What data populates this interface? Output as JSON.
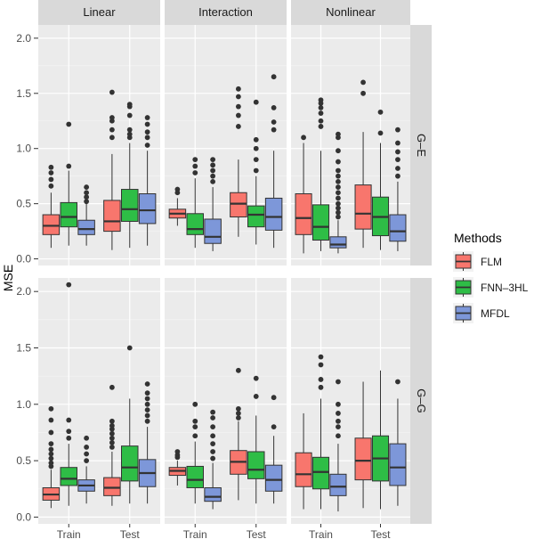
{
  "chart_data": {
    "type": "boxplot",
    "ylabel": "MSE",
    "xlabel": "",
    "ylim": [
      -0.06,
      2.12
    ],
    "yticks": [
      0.0,
      0.5,
      1.0,
      1.5,
      2.0
    ],
    "ytick_labels": [
      "0.0",
      "0.5",
      "1.0",
      "1.5",
      "2.0"
    ],
    "col_facets": [
      "Linear",
      "Interaction",
      "Nonlinear"
    ],
    "row_facets": [
      "G–E",
      "G–G"
    ],
    "categories": [
      "Train",
      "Test"
    ],
    "legend": {
      "title": "Methods",
      "position": "right",
      "entries": [
        {
          "name": "FLM",
          "color": "#f8766d"
        },
        {
          "name": "FNN–3HL",
          "color": "#2ebd46"
        },
        {
          "name": "MFDL",
          "color": "#7d97d9"
        }
      ]
    },
    "panels": [
      {
        "row": "G–E",
        "col": "Linear",
        "boxes": [
          {
            "x": "Train",
            "method": "FLM",
            "min": 0.1,
            "q1": 0.22,
            "median": 0.3,
            "q3": 0.4,
            "max": 0.6,
            "outliers": [
              0.66,
              0.72,
              0.78,
              0.83
            ]
          },
          {
            "x": "Train",
            "method": "FNN–3HL",
            "min": 0.12,
            "q1": 0.29,
            "median": 0.38,
            "q3": 0.51,
            "max": 0.8,
            "outliers": [
              0.84,
              1.22
            ]
          },
          {
            "x": "Train",
            "method": "MFDL",
            "min": 0.12,
            "q1": 0.22,
            "median": 0.27,
            "q3": 0.35,
            "max": 0.5,
            "outliers": [
              0.52,
              0.56,
              0.6,
              0.65
            ]
          },
          {
            "x": "Test",
            "method": "FLM",
            "min": 0.08,
            "q1": 0.25,
            "median": 0.34,
            "q3": 0.53,
            "max": 0.95,
            "outliers": [
              1.1,
              1.17,
              1.25,
              1.28,
              1.51
            ]
          },
          {
            "x": "Test",
            "method": "FNN–3HL",
            "min": 0.1,
            "q1": 0.34,
            "median": 0.45,
            "q3": 0.63,
            "max": 1.05,
            "outliers": [
              1.1,
              1.13,
              1.17,
              1.3,
              1.38,
              1.4
            ]
          },
          {
            "x": "Test",
            "method": "MFDL",
            "min": 0.12,
            "q1": 0.32,
            "median": 0.44,
            "q3": 0.59,
            "max": 0.98,
            "outliers": [
              1.03,
              1.1,
              1.15,
              1.22,
              1.28
            ]
          }
        ]
      },
      {
        "row": "G–E",
        "col": "Interaction",
        "boxes": [
          {
            "x": "Train",
            "method": "FLM",
            "min": 0.3,
            "q1": 0.37,
            "median": 0.41,
            "q3": 0.45,
            "max": 0.55,
            "outliers": [
              0.6,
              0.63
            ]
          },
          {
            "x": "Train",
            "method": "FNN–3HL",
            "min": 0.1,
            "q1": 0.22,
            "median": 0.27,
            "q3": 0.41,
            "max": 0.73,
            "outliers": [
              0.78,
              0.84,
              0.9
            ]
          },
          {
            "x": "Train",
            "method": "MFDL",
            "min": 0.07,
            "q1": 0.14,
            "median": 0.2,
            "q3": 0.36,
            "max": 0.65,
            "outliers": [
              0.7,
              0.75,
              0.8,
              0.85,
              0.9
            ]
          },
          {
            "x": "Test",
            "method": "FLM",
            "min": 0.2,
            "q1": 0.38,
            "median": 0.5,
            "q3": 0.6,
            "max": 0.9,
            "outliers": [
              1.2,
              1.3,
              1.38,
              1.47,
              1.54
            ]
          },
          {
            "x": "Test",
            "method": "FNN–3HL",
            "min": 0.13,
            "q1": 0.29,
            "median": 0.4,
            "q3": 0.48,
            "max": 0.75,
            "outliers": [
              0.8,
              0.9,
              1.0,
              1.08,
              1.42
            ]
          },
          {
            "x": "Test",
            "method": "MFDL",
            "min": 0.1,
            "q1": 0.26,
            "median": 0.38,
            "q3": 0.55,
            "max": 0.98,
            "outliers": [
              1.17,
              1.24,
              1.37,
              1.65
            ]
          }
        ]
      },
      {
        "row": "G–E",
        "col": "Nonlinear",
        "boxes": [
          {
            "x": "Train",
            "method": "FLM",
            "min": 0.05,
            "q1": 0.22,
            "median": 0.37,
            "q3": 0.59,
            "max": 1.05,
            "outliers": [
              1.1
            ]
          },
          {
            "x": "Train",
            "method": "FNN–3HL",
            "min": 0.07,
            "q1": 0.17,
            "median": 0.29,
            "q3": 0.49,
            "max": 0.98,
            "outliers": [
              1.2,
              1.25,
              1.32,
              1.37,
              1.41,
              1.44
            ]
          },
          {
            "x": "Train",
            "method": "MFDL",
            "min": 0.05,
            "q1": 0.1,
            "median": 0.13,
            "q3": 0.2,
            "max": 0.35,
            "outliers": [
              0.38,
              0.42,
              0.46,
              0.5,
              0.55,
              0.6,
              0.65,
              0.7,
              0.75,
              0.8,
              0.88,
              0.98,
              1.1,
              1.13
            ]
          },
          {
            "x": "Test",
            "method": "FLM",
            "min": 0.1,
            "q1": 0.27,
            "median": 0.41,
            "q3": 0.67,
            "max": 1.15,
            "outliers": [
              1.5,
              1.6
            ]
          },
          {
            "x": "Test",
            "method": "FNN–3HL",
            "min": 0.08,
            "q1": 0.21,
            "median": 0.38,
            "q3": 0.56,
            "max": 1.05,
            "outliers": [
              1.14,
              1.33
            ]
          },
          {
            "x": "Test",
            "method": "MFDL",
            "min": 0.07,
            "q1": 0.16,
            "median": 0.25,
            "q3": 0.4,
            "max": 0.7,
            "outliers": [
              0.75,
              0.82,
              0.9,
              0.97,
              1.05,
              1.17
            ]
          }
        ]
      },
      {
        "row": "G–G",
        "col": "Linear",
        "boxes": [
          {
            "x": "Train",
            "method": "FLM",
            "min": 0.08,
            "q1": 0.15,
            "median": 0.2,
            "q3": 0.26,
            "max": 0.42,
            "outliers": [
              0.45,
              0.48,
              0.52,
              0.56,
              0.6,
              0.65,
              0.75,
              0.86,
              0.96
            ]
          },
          {
            "x": "Train",
            "method": "FNN–3HL",
            "min": 0.1,
            "q1": 0.28,
            "median": 0.34,
            "q3": 0.44,
            "max": 0.65,
            "outliers": [
              0.7,
              0.76,
              0.86,
              2.06
            ]
          },
          {
            "x": "Train",
            "method": "MFDL",
            "min": 0.12,
            "q1": 0.23,
            "median": 0.28,
            "q3": 0.33,
            "max": 0.45,
            "outliers": [
              0.5,
              0.56,
              0.62,
              0.7
            ]
          },
          {
            "x": "Test",
            "method": "FLM",
            "min": 0.1,
            "q1": 0.19,
            "median": 0.26,
            "q3": 0.35,
            "max": 0.58,
            "outliers": [
              0.62,
              0.66,
              0.7,
              0.74,
              0.78,
              0.81,
              0.85,
              1.15
            ]
          },
          {
            "x": "Test",
            "method": "FNN–3HL",
            "min": 0.12,
            "q1": 0.32,
            "median": 0.44,
            "q3": 0.63,
            "max": 1.05,
            "outliers": [
              1.5
            ]
          },
          {
            "x": "Test",
            "method": "MFDL",
            "min": 0.12,
            "q1": 0.27,
            "median": 0.39,
            "q3": 0.51,
            "max": 0.8,
            "outliers": [
              0.85,
              0.9,
              0.95,
              1.0,
              1.05,
              1.1,
              1.18
            ]
          }
        ]
      },
      {
        "row": "G–G",
        "col": "Interaction",
        "boxes": [
          {
            "x": "Train",
            "method": "FLM",
            "min": 0.28,
            "q1": 0.37,
            "median": 0.41,
            "q3": 0.44,
            "max": 0.5,
            "outliers": [
              0.53,
              0.55,
              0.58
            ]
          },
          {
            "x": "Train",
            "method": "FNN–3HL",
            "min": 0.12,
            "q1": 0.26,
            "median": 0.33,
            "q3": 0.45,
            "max": 0.67,
            "outliers": [
              0.72,
              0.8,
              0.85,
              1.0
            ]
          },
          {
            "x": "Train",
            "method": "MFDL",
            "min": 0.07,
            "q1": 0.14,
            "median": 0.18,
            "q3": 0.26,
            "max": 0.48,
            "outliers": [
              0.52,
              0.58,
              0.65,
              0.72,
              0.8,
              0.88,
              0.93
            ]
          },
          {
            "x": "Test",
            "method": "FLM",
            "min": 0.15,
            "q1": 0.38,
            "median": 0.49,
            "q3": 0.59,
            "max": 0.85,
            "outliers": [
              0.88,
              0.92,
              0.96,
              1.3
            ]
          },
          {
            "x": "Test",
            "method": "FNN–3HL",
            "min": 0.12,
            "q1": 0.34,
            "median": 0.42,
            "q3": 0.58,
            "max": 0.9,
            "outliers": [
              1.07,
              1.23
            ]
          },
          {
            "x": "Test",
            "method": "MFDL",
            "min": 0.12,
            "q1": 0.23,
            "median": 0.33,
            "q3": 0.46,
            "max": 0.72,
            "outliers": [
              0.8,
              1.06
            ]
          }
        ]
      },
      {
        "row": "G–G",
        "col": "Nonlinear",
        "boxes": [
          {
            "x": "Train",
            "method": "FLM",
            "min": 0.07,
            "q1": 0.27,
            "median": 0.38,
            "q3": 0.57,
            "max": 0.92,
            "outliers": []
          },
          {
            "x": "Train",
            "method": "FNN–3HL",
            "min": 0.07,
            "q1": 0.25,
            "median": 0.4,
            "q3": 0.53,
            "max": 1.05,
            "outliers": [
              1.15,
              1.22,
              1.35,
              1.42
            ]
          },
          {
            "x": "Train",
            "method": "MFDL",
            "min": 0.05,
            "q1": 0.19,
            "median": 0.27,
            "q3": 0.38,
            "max": 0.65,
            "outliers": [
              0.72,
              0.8,
              0.85,
              0.92,
              1.0,
              1.2
            ]
          },
          {
            "x": "Test",
            "method": "FLM",
            "min": 0.08,
            "q1": 0.33,
            "median": 0.5,
            "q3": 0.7,
            "max": 1.2,
            "outliers": []
          },
          {
            "x": "Test",
            "method": "FNN–3HL",
            "min": 0.07,
            "q1": 0.32,
            "median": 0.52,
            "q3": 0.72,
            "max": 1.3,
            "outliers": []
          },
          {
            "x": "Test",
            "method": "MFDL",
            "min": 0.1,
            "q1": 0.28,
            "median": 0.44,
            "q3": 0.65,
            "max": 1.05,
            "outliers": [
              1.2
            ]
          }
        ]
      }
    ]
  }
}
